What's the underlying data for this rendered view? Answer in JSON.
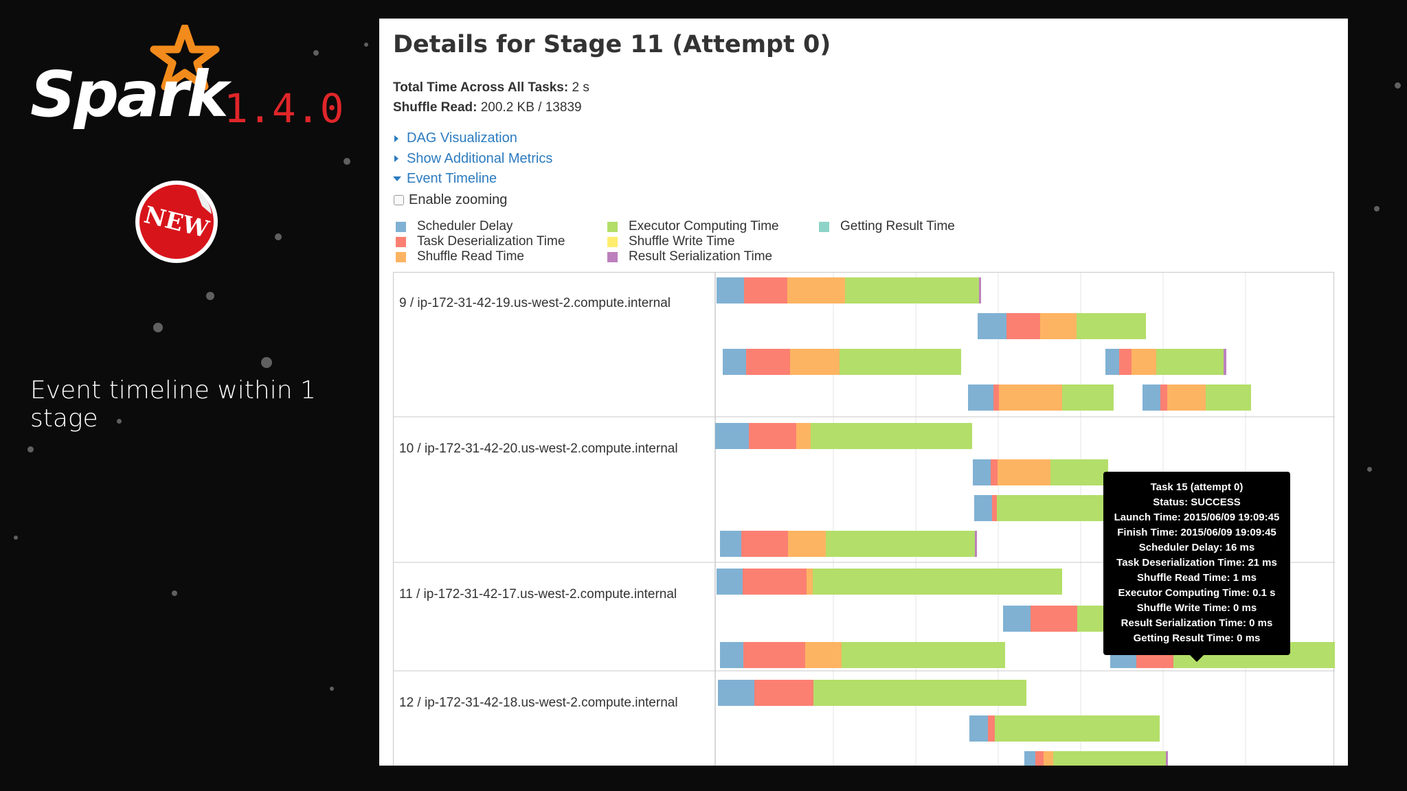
{
  "brand": {
    "name": "Spark",
    "version": "1.4.0",
    "badge": "NEW"
  },
  "caption": "Event timeline within 1 stage",
  "page": {
    "title": "Details for Stage 11 (Attempt 0)",
    "summary": [
      {
        "label": "Total Time Across All Tasks:",
        "value": "2 s"
      },
      {
        "label": "Shuffle Read:",
        "value": "200.2 KB / 13839"
      }
    ],
    "links": [
      {
        "label": "DAG Visualization",
        "expanded": false
      },
      {
        "label": "Show Additional Metrics",
        "expanded": false
      },
      {
        "label": "Event Timeline",
        "expanded": true
      }
    ],
    "zoom_label": "Enable zooming",
    "zoom_enabled": false
  },
  "legend": [
    {
      "label": "Scheduler Delay",
      "color": "#80b1d3"
    },
    {
      "label": "Task Deserialization Time",
      "color": "#fb8072"
    },
    {
      "label": "Shuffle Read Time",
      "color": "#fdb462"
    },
    {
      "label": "Executor Computing Time",
      "color": "#b3de69"
    },
    {
      "label": "Shuffle Write Time",
      "color": "#ffed6f"
    },
    {
      "label": "Result Serialization Time",
      "color": "#bc80bd"
    },
    {
      "label": "Getting Result Time",
      "color": "#8dd3c7"
    }
  ],
  "executors": [
    {
      "label": "9 / ip-172-31-42-19.us-west-2.compute.internal"
    },
    {
      "label": "10 / ip-172-31-42-20.us-west-2.compute.internal"
    },
    {
      "label": "11 / ip-172-31-42-17.us-west-2.compute.internal"
    },
    {
      "label": "12 / ip-172-31-42-18.us-west-2.compute.internal"
    }
  ],
  "tooltip": {
    "lines": [
      "Task 15 (attempt 0)",
      "Status: SUCCESS",
      "Launch Time: 2015/06/09 19:09:45",
      "Finish Time: 2015/06/09 19:09:45",
      "Scheduler Delay: 16 ms",
      "Task Deserialization Time: 21 ms",
      "Shuffle Read Time: 1 ms",
      "Executor Computing Time: 0.1 s",
      "Shuffle Write Time: 0 ms",
      "Result Serialization Time: 0 ms",
      "Getting Result Time: 0 ms"
    ]
  }
}
